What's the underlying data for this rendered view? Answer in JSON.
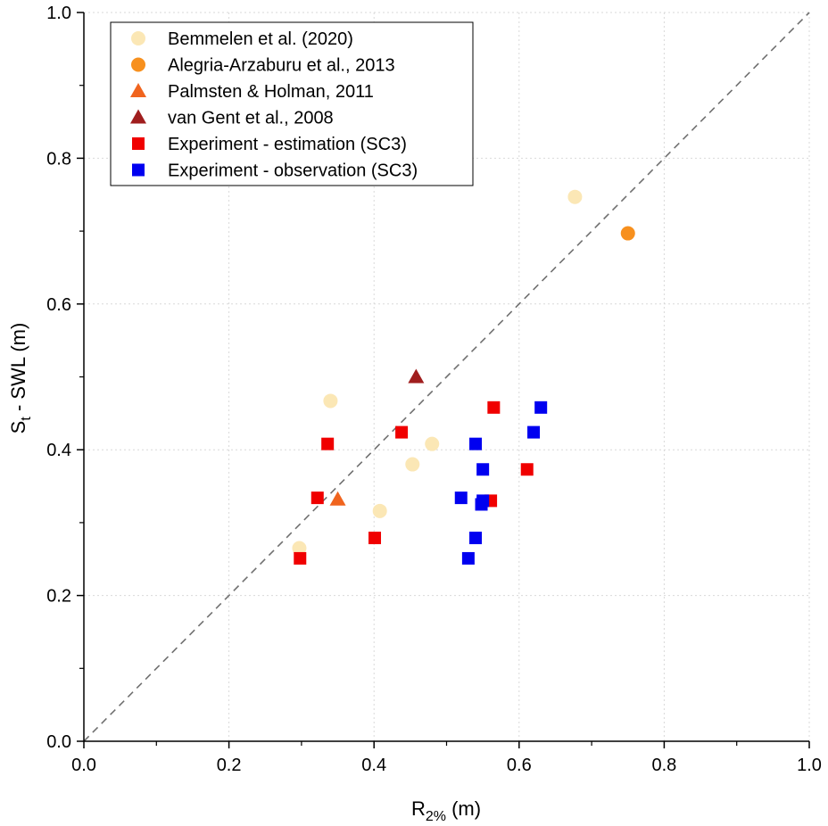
{
  "chart_data": {
    "type": "scatter",
    "title": "",
    "xlabel": {
      "main": "R",
      "sub": "2%",
      "unit": " (m)"
    },
    "ylabel": {
      "main": "S",
      "sub": "t",
      "unit": " - SWL (m)"
    },
    "xlim": [
      0.0,
      1.0
    ],
    "ylim": [
      0.0,
      1.0
    ],
    "xticks": [
      "0.0",
      "0.2",
      "0.4",
      "0.6",
      "0.8",
      "1.0"
    ],
    "yticks": [
      "0.0",
      "0.2",
      "0.4",
      "0.6",
      "0.8",
      "1.0"
    ],
    "tick_values": [
      0.0,
      0.2,
      0.4,
      0.6,
      0.8,
      1.0
    ],
    "grid": true,
    "legend_position": "top-left",
    "reference_line": {
      "style": "dashed",
      "color": "#707070",
      "from": [
        0.0,
        0.0
      ],
      "to": [
        1.0,
        1.0
      ]
    },
    "series": [
      {
        "name": "Bemmelen et al. (2020)",
        "marker": "circle",
        "color": "#fbe7b5",
        "points": [
          [
            0.677,
            0.747
          ],
          [
            0.34,
            0.467
          ],
          [
            0.48,
            0.408
          ],
          [
            0.453,
            0.38
          ],
          [
            0.408,
            0.316
          ],
          [
            0.297,
            0.265
          ]
        ]
      },
      {
        "name": "Alegria-Arzaburu et al., 2013",
        "marker": "circle",
        "color": "#f7901e",
        "points": [
          [
            0.75,
            0.697
          ]
        ]
      },
      {
        "name": "Palmsten & Holman, 2011",
        "marker": "triangle",
        "color": "#f0641e",
        "points": [
          [
            0.35,
            0.332
          ]
        ]
      },
      {
        "name": "van Gent et al., 2008",
        "marker": "triangle",
        "color": "#a01e1e",
        "points": [
          [
            0.458,
            0.5
          ]
        ]
      },
      {
        "name": "Experiment - estimation (SC3)",
        "marker": "square",
        "color": "#f00000",
        "points": [
          [
            0.565,
            0.458
          ],
          [
            0.438,
            0.424
          ],
          [
            0.336,
            0.408
          ],
          [
            0.611,
            0.373
          ],
          [
            0.322,
            0.334
          ],
          [
            0.561,
            0.33
          ],
          [
            0.401,
            0.279
          ],
          [
            0.298,
            0.251
          ]
        ]
      },
      {
        "name": "Experiment - observation (SC3)",
        "marker": "square",
        "color": "#0000f0",
        "points": [
          [
            0.63,
            0.458
          ],
          [
            0.62,
            0.424
          ],
          [
            0.54,
            0.408
          ],
          [
            0.55,
            0.373
          ],
          [
            0.52,
            0.334
          ],
          [
            0.55,
            0.33
          ],
          [
            0.548,
            0.325
          ],
          [
            0.54,
            0.279
          ],
          [
            0.53,
            0.251
          ]
        ]
      }
    ]
  }
}
